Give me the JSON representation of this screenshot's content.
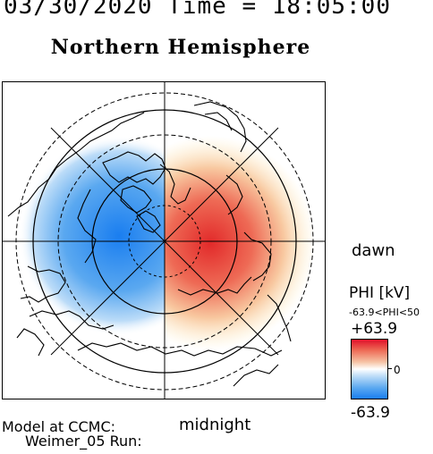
{
  "header": {
    "time_line": "03/30/2020 Time = 18:05:00",
    "title": "Northern Hemisphere"
  },
  "map": {
    "orientation_labels": {
      "right": "dawn",
      "bottom": "midnight"
    },
    "potential_pattern": {
      "negative_cell": "dusk/left side, blue",
      "positive_cell": "dawn/right side, red"
    }
  },
  "colorbar": {
    "title": "PHI [kV]",
    "range_text": "-63.9<PHI<50",
    "max_label": "+63.9",
    "zero_label": "0",
    "min_label": "-63.9",
    "colors": {
      "max": "#e0102a",
      "zero": "#ffffff",
      "min": "#1a7ef0"
    }
  },
  "footer": {
    "model_line": "Model at CCMC:",
    "run_line": "Weimer_05 Run:"
  }
}
